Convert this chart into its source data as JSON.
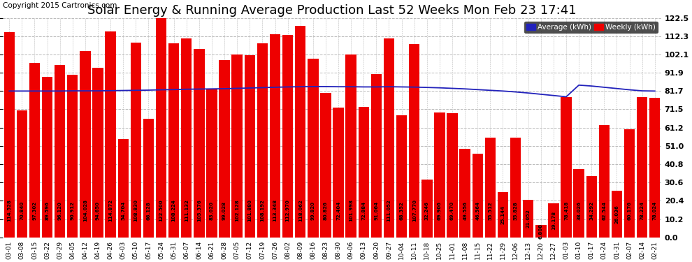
{
  "title": "Solar Energy & Running Average Production Last 52 Weeks Mon Feb 23 17:41",
  "copyright": "Copyright 2015 Cartronics.com",
  "categories": [
    "03-01",
    "03-08",
    "03-15",
    "03-22",
    "03-29",
    "04-05",
    "04-12",
    "04-19",
    "04-26",
    "05-03",
    "05-10",
    "05-17",
    "05-24",
    "05-31",
    "06-07",
    "06-14",
    "06-21",
    "06-28",
    "07-05",
    "07-12",
    "07-19",
    "07-26",
    "08-02",
    "08-09",
    "08-16",
    "08-23",
    "08-30",
    "09-06",
    "09-13",
    "09-20",
    "09-27",
    "10-04",
    "10-11",
    "10-18",
    "10-25",
    "11-01",
    "11-08",
    "11-15",
    "11-22",
    "11-29",
    "12-06",
    "12-13",
    "12-20",
    "12-27",
    "01-03",
    "01-10",
    "01-17",
    "01-24",
    "01-31",
    "02-07",
    "02-14",
    "02-21"
  ],
  "weekly_values": [
    114.528,
    70.84,
    97.302,
    89.596,
    96.12,
    90.912,
    104.028,
    94.65,
    114.872,
    54.704,
    108.83,
    66.128,
    122.5,
    108.224,
    111.132,
    105.376,
    83.02,
    99.028,
    102.128,
    101.88,
    108.192,
    113.348,
    112.97,
    118.062,
    99.82,
    80.826,
    72.404,
    101.998,
    72.884,
    91.064,
    111.052,
    68.352,
    107.77,
    32.246,
    69.906,
    69.47,
    49.556,
    46.564,
    55.512,
    25.144,
    55.828,
    21.052,
    6.808,
    19.178,
    78.418,
    38.026,
    34.292,
    62.544,
    26.036,
    60.176,
    78.224,
    78.024
  ],
  "average_values": [
    81.7,
    81.7,
    81.7,
    81.7,
    81.7,
    81.8,
    81.8,
    81.8,
    81.9,
    82.0,
    82.1,
    82.2,
    82.4,
    82.5,
    82.7,
    82.8,
    82.9,
    83.0,
    83.2,
    83.4,
    83.6,
    83.8,
    84.0,
    84.1,
    84.2,
    84.2,
    84.1,
    84.1,
    84.0,
    84.0,
    84.1,
    84.0,
    83.9,
    83.7,
    83.5,
    83.2,
    82.9,
    82.5,
    82.1,
    81.7,
    81.2,
    80.6,
    79.9,
    79.2,
    78.5,
    85.0,
    84.5,
    83.8,
    83.1,
    82.4,
    81.8,
    81.7
  ],
  "bar_color": "#ee0000",
  "line_color": "#2222bb",
  "background_color": "#ffffff",
  "grid_color": "#bbbbbb",
  "yticks": [
    0.0,
    10.2,
    20.4,
    30.6,
    40.8,
    51.0,
    61.2,
    71.5,
    81.7,
    91.9,
    102.1,
    112.3,
    122.5
  ],
  "ylim": [
    0,
    122.5
  ],
  "legend_avg_label": "Average (kWh)",
  "legend_weekly_label": "Weekly (kWh)",
  "title_fontsize": 13,
  "copyright_fontsize": 7.5
}
